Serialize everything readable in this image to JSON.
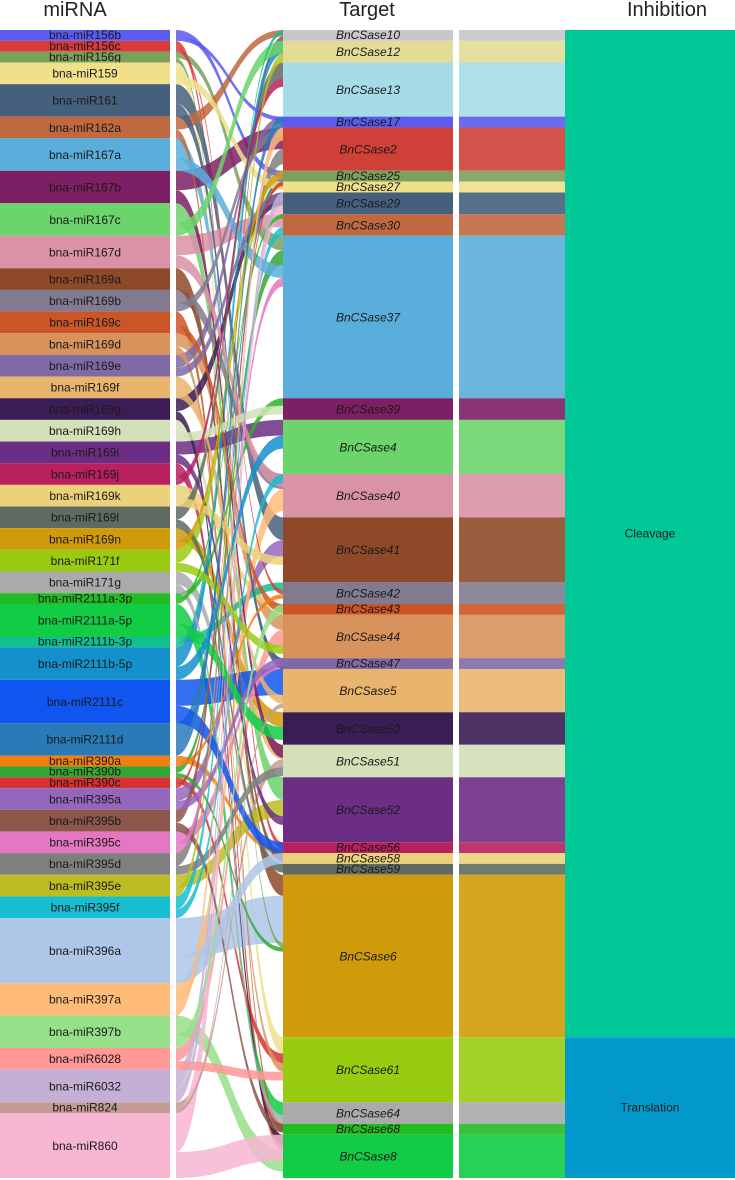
{
  "headers": {
    "mirna": "miRNA",
    "target": "Target",
    "inhibition": "Inhibition"
  },
  "chart_data": {
    "type": "sankey",
    "mirnas": [
      {
        "name": "bna-miR156b",
        "color": "#5b5bf0",
        "w": 1
      },
      {
        "name": "bna-miR156c",
        "color": "#d93a3a",
        "w": 1
      },
      {
        "name": "bna-miR156g",
        "color": "#7da05a",
        "w": 1
      },
      {
        "name": "bna-miR159",
        "color": "#f0e08a",
        "w": 2
      },
      {
        "name": "bna-miR161",
        "color": "#45607c",
        "w": 3
      },
      {
        "name": "bna-miR162a",
        "color": "#c0683f",
        "w": 2
      },
      {
        "name": "bna-miR167a",
        "color": "#5aaedc",
        "w": 3
      },
      {
        "name": "bna-miR167b",
        "color": "#7c1f64",
        "w": 3
      },
      {
        "name": "bna-miR167c",
        "color": "#6bd46b",
        "w": 3
      },
      {
        "name": "bna-miR167d",
        "color": "#d992a6",
        "w": 3
      },
      {
        "name": "bna-miR169a",
        "color": "#8e4a28",
        "w": 2
      },
      {
        "name": "bna-miR169b",
        "color": "#827b90",
        "w": 2
      },
      {
        "name": "bna-miR169c",
        "color": "#cc5528",
        "w": 2
      },
      {
        "name": "bna-miR169d",
        "color": "#d8925c",
        "w": 2
      },
      {
        "name": "bna-miR169e",
        "color": "#7f6aa6",
        "w": 2
      },
      {
        "name": "bna-miR169f",
        "color": "#e9b56e",
        "w": 2
      },
      {
        "name": "bna-miR169g",
        "color": "#3b1d55",
        "w": 2
      },
      {
        "name": "bna-miR169h",
        "color": "#d3e0b8",
        "w": 2
      },
      {
        "name": "bna-miR169i",
        "color": "#6b2e84",
        "w": 2
      },
      {
        "name": "bna-miR169j",
        "color": "#b8205e",
        "w": 2
      },
      {
        "name": "bna-miR169k",
        "color": "#ead17a",
        "w": 2
      },
      {
        "name": "bna-miR169l",
        "color": "#5f6b61",
        "w": 2
      },
      {
        "name": "bna-miR169n",
        "color": "#d09b0a",
        "w": 2
      },
      {
        "name": "bna-miR171f",
        "color": "#99cc10",
        "w": 2
      },
      {
        "name": "bna-miR171g",
        "color": "#aaaaaa",
        "w": 2
      },
      {
        "name": "bna-miR2111a-3p",
        "color": "#22bb22",
        "w": 1
      },
      {
        "name": "bna-miR2111a-5p",
        "color": "#11cc44",
        "w": 3
      },
      {
        "name": "bna-miR2111b-3p",
        "color": "#11c08e",
        "w": 1
      },
      {
        "name": "bna-miR2111b-5p",
        "color": "#1490cc",
        "w": 3
      },
      {
        "name": "bna-miR2111c",
        "color": "#1155f0",
        "w": 4
      },
      {
        "name": "bna-miR2111d",
        "color": "#2a7ab8",
        "w": 3
      },
      {
        "name": "bna-miR390a",
        "color": "#f07f10",
        "w": 1
      },
      {
        "name": "bna-miR390b",
        "color": "#33a733",
        "w": 1
      },
      {
        "name": "bna-miR390c",
        "color": "#d83030",
        "w": 1
      },
      {
        "name": "bna-miR395a",
        "color": "#9467bd",
        "w": 2
      },
      {
        "name": "bna-miR395b",
        "color": "#8c564b",
        "w": 2
      },
      {
        "name": "bna-miR395c",
        "color": "#e377c2",
        "w": 2
      },
      {
        "name": "bna-miR395d",
        "color": "#7f7f7f",
        "w": 2
      },
      {
        "name": "bna-miR395e",
        "color": "#bcbd22",
        "w": 2
      },
      {
        "name": "bna-miR395f",
        "color": "#17becf",
        "w": 2
      },
      {
        "name": "bna-miR396a",
        "color": "#aec7e8",
        "w": 6
      },
      {
        "name": "bna-miR397a",
        "color": "#ffbb78",
        "w": 3
      },
      {
        "name": "bna-miR397b",
        "color": "#98df8a",
        "w": 3
      },
      {
        "name": "bna-miR6028",
        "color": "#ff9896",
        "w": 2
      },
      {
        "name": "bna-miR6032",
        "color": "#c5b0d5",
        "w": 3
      },
      {
        "name": "bna-miR824",
        "color": "#c49c94",
        "w": 1
      },
      {
        "name": "bna-miR860",
        "color": "#f7b6d2",
        "w": 6
      }
    ],
    "targets": [
      {
        "name": "BnCSase10",
        "color": "#c8c8c8",
        "w": 1,
        "inhibition": 0
      },
      {
        "name": "BnCSase12",
        "color": "#e2dc96",
        "w": 2,
        "inhibition": 0
      },
      {
        "name": "BnCSase13",
        "color": "#a6dce6",
        "w": 5,
        "inhibition": 0
      },
      {
        "name": "BnCSase17",
        "color": "#5b5bf0",
        "w": 1,
        "inhibition": 0
      },
      {
        "name": "BnCSase2",
        "color": "#d04038",
        "w": 4,
        "inhibition": 0
      },
      {
        "name": "BnCSase25",
        "color": "#7da05a",
        "w": 1,
        "inhibition": 0
      },
      {
        "name": "BnCSase27",
        "color": "#f0e08a",
        "w": 1,
        "inhibition": 0
      },
      {
        "name": "BnCSase29",
        "color": "#45607c",
        "w": 2,
        "inhibition": 0
      },
      {
        "name": "BnCSase30",
        "color": "#c0683f",
        "w": 2,
        "inhibition": 0
      },
      {
        "name": "BnCSase37",
        "color": "#5aaedc",
        "w": 15,
        "inhibition": 0
      },
      {
        "name": "BnCSase39",
        "color": "#7c1f64",
        "w": 2,
        "inhibition": 0
      },
      {
        "name": "BnCSase4",
        "color": "#6bd46b",
        "w": 5,
        "inhibition": 0
      },
      {
        "name": "BnCSase40",
        "color": "#d992a6",
        "w": 4,
        "inhibition": 0
      },
      {
        "name": "BnCSase41",
        "color": "#8e4a28",
        "w": 6,
        "inhibition": 0
      },
      {
        "name": "BnCSase42",
        "color": "#827b90",
        "w": 2,
        "inhibition": 0
      },
      {
        "name": "BnCSase43",
        "color": "#cc5528",
        "w": 1,
        "inhibition": 0
      },
      {
        "name": "BnCSase44",
        "color": "#d8925c",
        "w": 4,
        "inhibition": 0
      },
      {
        "name": "BnCSase47",
        "color": "#7f6aa6",
        "w": 1,
        "inhibition": 0
      },
      {
        "name": "BnCSase5",
        "color": "#e9b56e",
        "w": 4,
        "inhibition": 0
      },
      {
        "name": "BnCSase50",
        "color": "#3b1d55",
        "w": 3,
        "inhibition": 0
      },
      {
        "name": "BnCSase51",
        "color": "#d3e0b8",
        "w": 3,
        "inhibition": 0
      },
      {
        "name": "BnCSase52",
        "color": "#6b2e84",
        "w": 6,
        "inhibition": 0
      },
      {
        "name": "BnCSase56",
        "color": "#b8205e",
        "w": 1,
        "inhibition": 0
      },
      {
        "name": "BnCSase58",
        "color": "#ead17a",
        "w": 1,
        "inhibition": 0
      },
      {
        "name": "BnCSase59",
        "color": "#5f6b61",
        "w": 1,
        "inhibition": 0
      },
      {
        "name": "BnCSase6",
        "color": "#d09b0a",
        "w": 15,
        "inhibition": 0
      },
      {
        "name": "BnCSase61",
        "color": "#99cc10",
        "w": 6,
        "inhibition": 1
      },
      {
        "name": "BnCSase64",
        "color": "#aaaaaa",
        "w": 2,
        "inhibition": 1
      },
      {
        "name": "BnCSase68",
        "color": "#22bb22",
        "w": 1,
        "inhibition": 1
      },
      {
        "name": "BnCSase8",
        "color": "#11cc44",
        "w": 4,
        "inhibition": 1
      }
    ],
    "inhibitions": [
      {
        "name": "Cleavage",
        "color": "#00c896"
      },
      {
        "name": "Translation",
        "color": "#0399cc"
      }
    ]
  }
}
